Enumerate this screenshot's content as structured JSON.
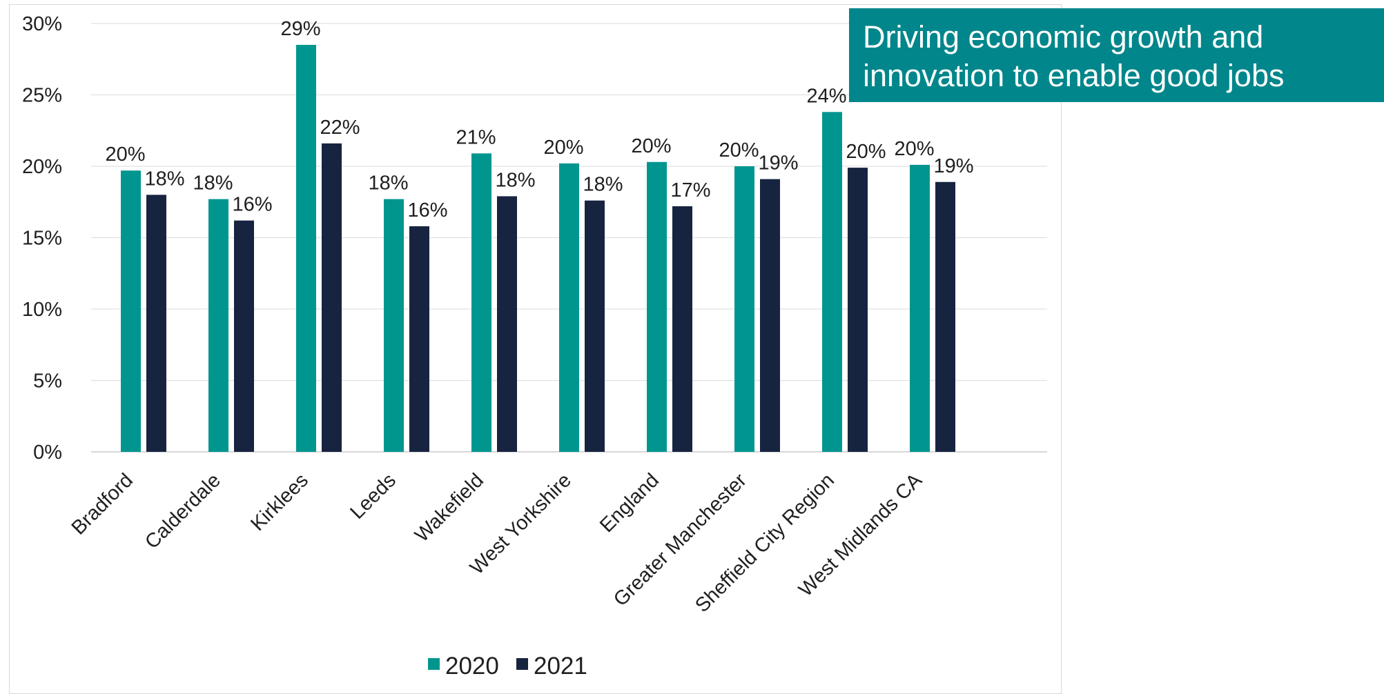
{
  "banner": {
    "line1": "Driving economic growth and",
    "line2": "innovation to enable good jobs",
    "color": "#00868b"
  },
  "chart_data": {
    "type": "bar",
    "title": "",
    "xlabel": "",
    "ylabel": "",
    "ylim": [
      0,
      0.3
    ],
    "yticks": [
      {
        "value": 0,
        "label": "0%"
      },
      {
        "value": 0.05,
        "label": "5%"
      },
      {
        "value": 0.1,
        "label": "10%"
      },
      {
        "value": 0.15,
        "label": "15%"
      },
      {
        "value": 0.2,
        "label": "20%"
      },
      {
        "value": 0.25,
        "label": "25%"
      },
      {
        "value": 0.3,
        "label": "30%"
      }
    ],
    "grid": true,
    "legend_position": "bottom",
    "categories": [
      "Bradford",
      "Calderdale",
      "Kirklees",
      "Leeds",
      "Wakefield",
      "West Yorkshire",
      "England",
      "Greater Manchester",
      "Sheffield City Region",
      "West Midlands CA"
    ],
    "series": [
      {
        "name": "2020",
        "color": "#00968f",
        "values": [
          0.197,
          0.177,
          0.285,
          0.177,
          0.209,
          0.202,
          0.203,
          0.2,
          0.238,
          0.201
        ],
        "labels": [
          "20%",
          "18%",
          "29%",
          "18%",
          "21%",
          "20%",
          "20%",
          "20%",
          "24%",
          "20%"
        ]
      },
      {
        "name": "2021",
        "color": "#172440",
        "values": [
          0.18,
          0.162,
          0.216,
          0.158,
          0.179,
          0.176,
          0.172,
          0.191,
          0.199,
          0.189
        ],
        "labels": [
          "18%",
          "16%",
          "22%",
          "16%",
          "18%",
          "18%",
          "17%",
          "19%",
          "20%",
          "19%"
        ]
      }
    ]
  }
}
